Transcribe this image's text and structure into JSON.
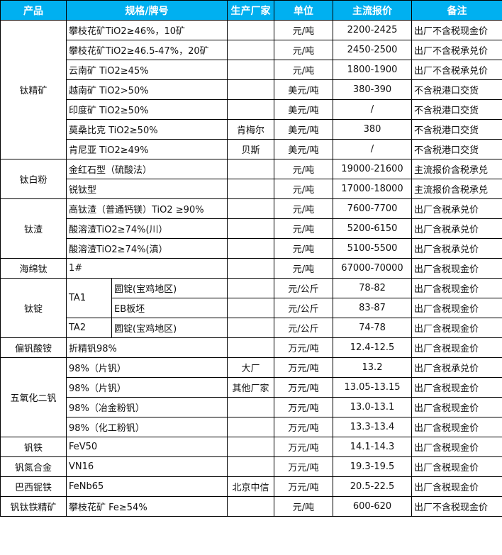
{
  "header": {
    "product": "产品",
    "spec": "规格/牌号",
    "maker": "生产厂家",
    "unit": "单位",
    "price": "主流报价",
    "note": "备注"
  },
  "colors": {
    "header_bg": "#00b0f0",
    "header_text": "#ffffff"
  },
  "groups": [
    {
      "product": "钛精矿",
      "rows": [
        {
          "spec": "攀枝花矿TiO2≥46%，10矿",
          "maker": "",
          "unit": "元/吨",
          "price": "2200-2425",
          "note": "出厂不含税现金价"
        },
        {
          "spec": "攀枝花矿TiO2≥46.5-47%，20矿",
          "maker": "",
          "unit": "元/吨",
          "price": "2450-2500",
          "note": "出厂不含税承兑价"
        },
        {
          "spec": "云南矿 TiO2≥45%",
          "maker": "",
          "unit": "元/吨",
          "price": "1800-1900",
          "note": "出厂不含税承兑价"
        },
        {
          "spec": "越南矿 TiO2>50%",
          "maker": "",
          "unit": "美元/吨",
          "price": "380-390",
          "note": "不含税港口交货"
        },
        {
          "spec": "印度矿 TiO2≥50%",
          "maker": "",
          "unit": "美元/吨",
          "price": "/",
          "note": "不含税港口交货"
        },
        {
          "spec": "莫桑比克 TiO2≥50%",
          "maker": "肯梅尔",
          "unit": "美元/吨",
          "price": "380",
          "note": "不含税港口交货"
        },
        {
          "spec": "肯尼亚 TiO2≥49%",
          "maker": "贝斯",
          "unit": "美元/吨",
          "price": "/",
          "note": "不含税港口交货"
        }
      ]
    },
    {
      "product": "钛白粉",
      "rows": [
        {
          "spec": "金红石型（硫酸法）",
          "maker": "",
          "unit": "元/吨",
          "price": "19000-21600",
          "note": "主流报价含税承兑"
        },
        {
          "spec": "锐钛型",
          "maker": "",
          "unit": "元/吨",
          "price": "17000-18000",
          "note": "主流报价含税承兑"
        }
      ]
    },
    {
      "product": "钛渣",
      "rows": [
        {
          "spec": "高钛渣（普通钙镁）TiO2 ≥90%",
          "maker": "",
          "unit": "元/吨",
          "price": "7600-7700",
          "note": "出厂含税承兑价"
        },
        {
          "spec": "酸溶渣TiO2≥74%(川）",
          "maker": "",
          "unit": "元/吨",
          "price": "5200-6150",
          "note": "出厂含税承兑价"
        },
        {
          "spec": "酸溶渣TiO2≥74%(滇）",
          "maker": "",
          "unit": "元/吨",
          "price": "5100-5500",
          "note": "出厂含税承兑价"
        }
      ]
    },
    {
      "product": "海绵钛",
      "rows": [
        {
          "spec": "1#",
          "maker": "",
          "unit": "元/吨",
          "price": "67000-70000",
          "note": "出厂含税现金价"
        }
      ]
    },
    {
      "product": "钛锭",
      "rows": [
        {
          "grade": "TA1",
          "sub": "圆锭(宝鸡地区)",
          "maker": "",
          "unit": "元/公斤",
          "price": "78-82",
          "note": "出厂含税现金价"
        },
        {
          "grade": "TA1",
          "sub": "EB板坯",
          "maker": "",
          "unit": "元/公斤",
          "price": "83-87",
          "note": "出厂含税现金价"
        },
        {
          "grade": "TA2",
          "sub": "圆锭(宝鸡地区)",
          "maker": "",
          "unit": "元/公斤",
          "price": "74-78",
          "note": "出厂含税现金价"
        }
      ]
    },
    {
      "product": "偏钒酸铵",
      "rows": [
        {
          "spec": "折精钒98%",
          "maker": "",
          "unit": "万元/吨",
          "price": "12.4-12.5",
          "note": "出厂含税现金价"
        }
      ]
    },
    {
      "product": "五氧化二钒",
      "rows": [
        {
          "spec": "98%（片钒）",
          "maker": "大厂",
          "unit": "万元/吨",
          "price": "13.2",
          "note": "出厂含税承兑价"
        },
        {
          "spec": "98%（片钒）",
          "maker": "其他厂家",
          "unit": "万元/吨",
          "price": "13.05-13.15",
          "note": "出厂含税现金价"
        },
        {
          "spec": "98%（冶金粉钒）",
          "maker": "",
          "unit": "万元/吨",
          "price": "13.0-13.1",
          "note": "出厂含税现金价"
        },
        {
          "spec": "98%（化工粉钒）",
          "maker": "",
          "unit": "万元/吨",
          "price": "13.3-13.4",
          "note": "出厂含税现金价"
        }
      ]
    },
    {
      "product": "钒铁",
      "rows": [
        {
          "spec": "FeV50",
          "maker": "",
          "unit": "万元/吨",
          "price": "14.1-14.3",
          "note": "出厂含税现金价"
        }
      ]
    },
    {
      "product": "钒氮合金",
      "rows": [
        {
          "spec": "VN16",
          "maker": "",
          "unit": "万元/吨",
          "price": "19.3-19.5",
          "note": "出厂含税现金价"
        }
      ]
    },
    {
      "product": "巴西铌铁",
      "rows": [
        {
          "spec": "FeNb65",
          "maker": "北京中信",
          "unit": "万元/吨",
          "price": "20.5-22.5",
          "note": "出厂含税现金价"
        }
      ]
    },
    {
      "product": "钒钛铁精矿",
      "rows": [
        {
          "spec": "攀枝花矿 Fe≥54%",
          "maker": "",
          "unit": "元/吨",
          "price": "600-620",
          "note": "出厂不含税现金价"
        }
      ]
    }
  ]
}
